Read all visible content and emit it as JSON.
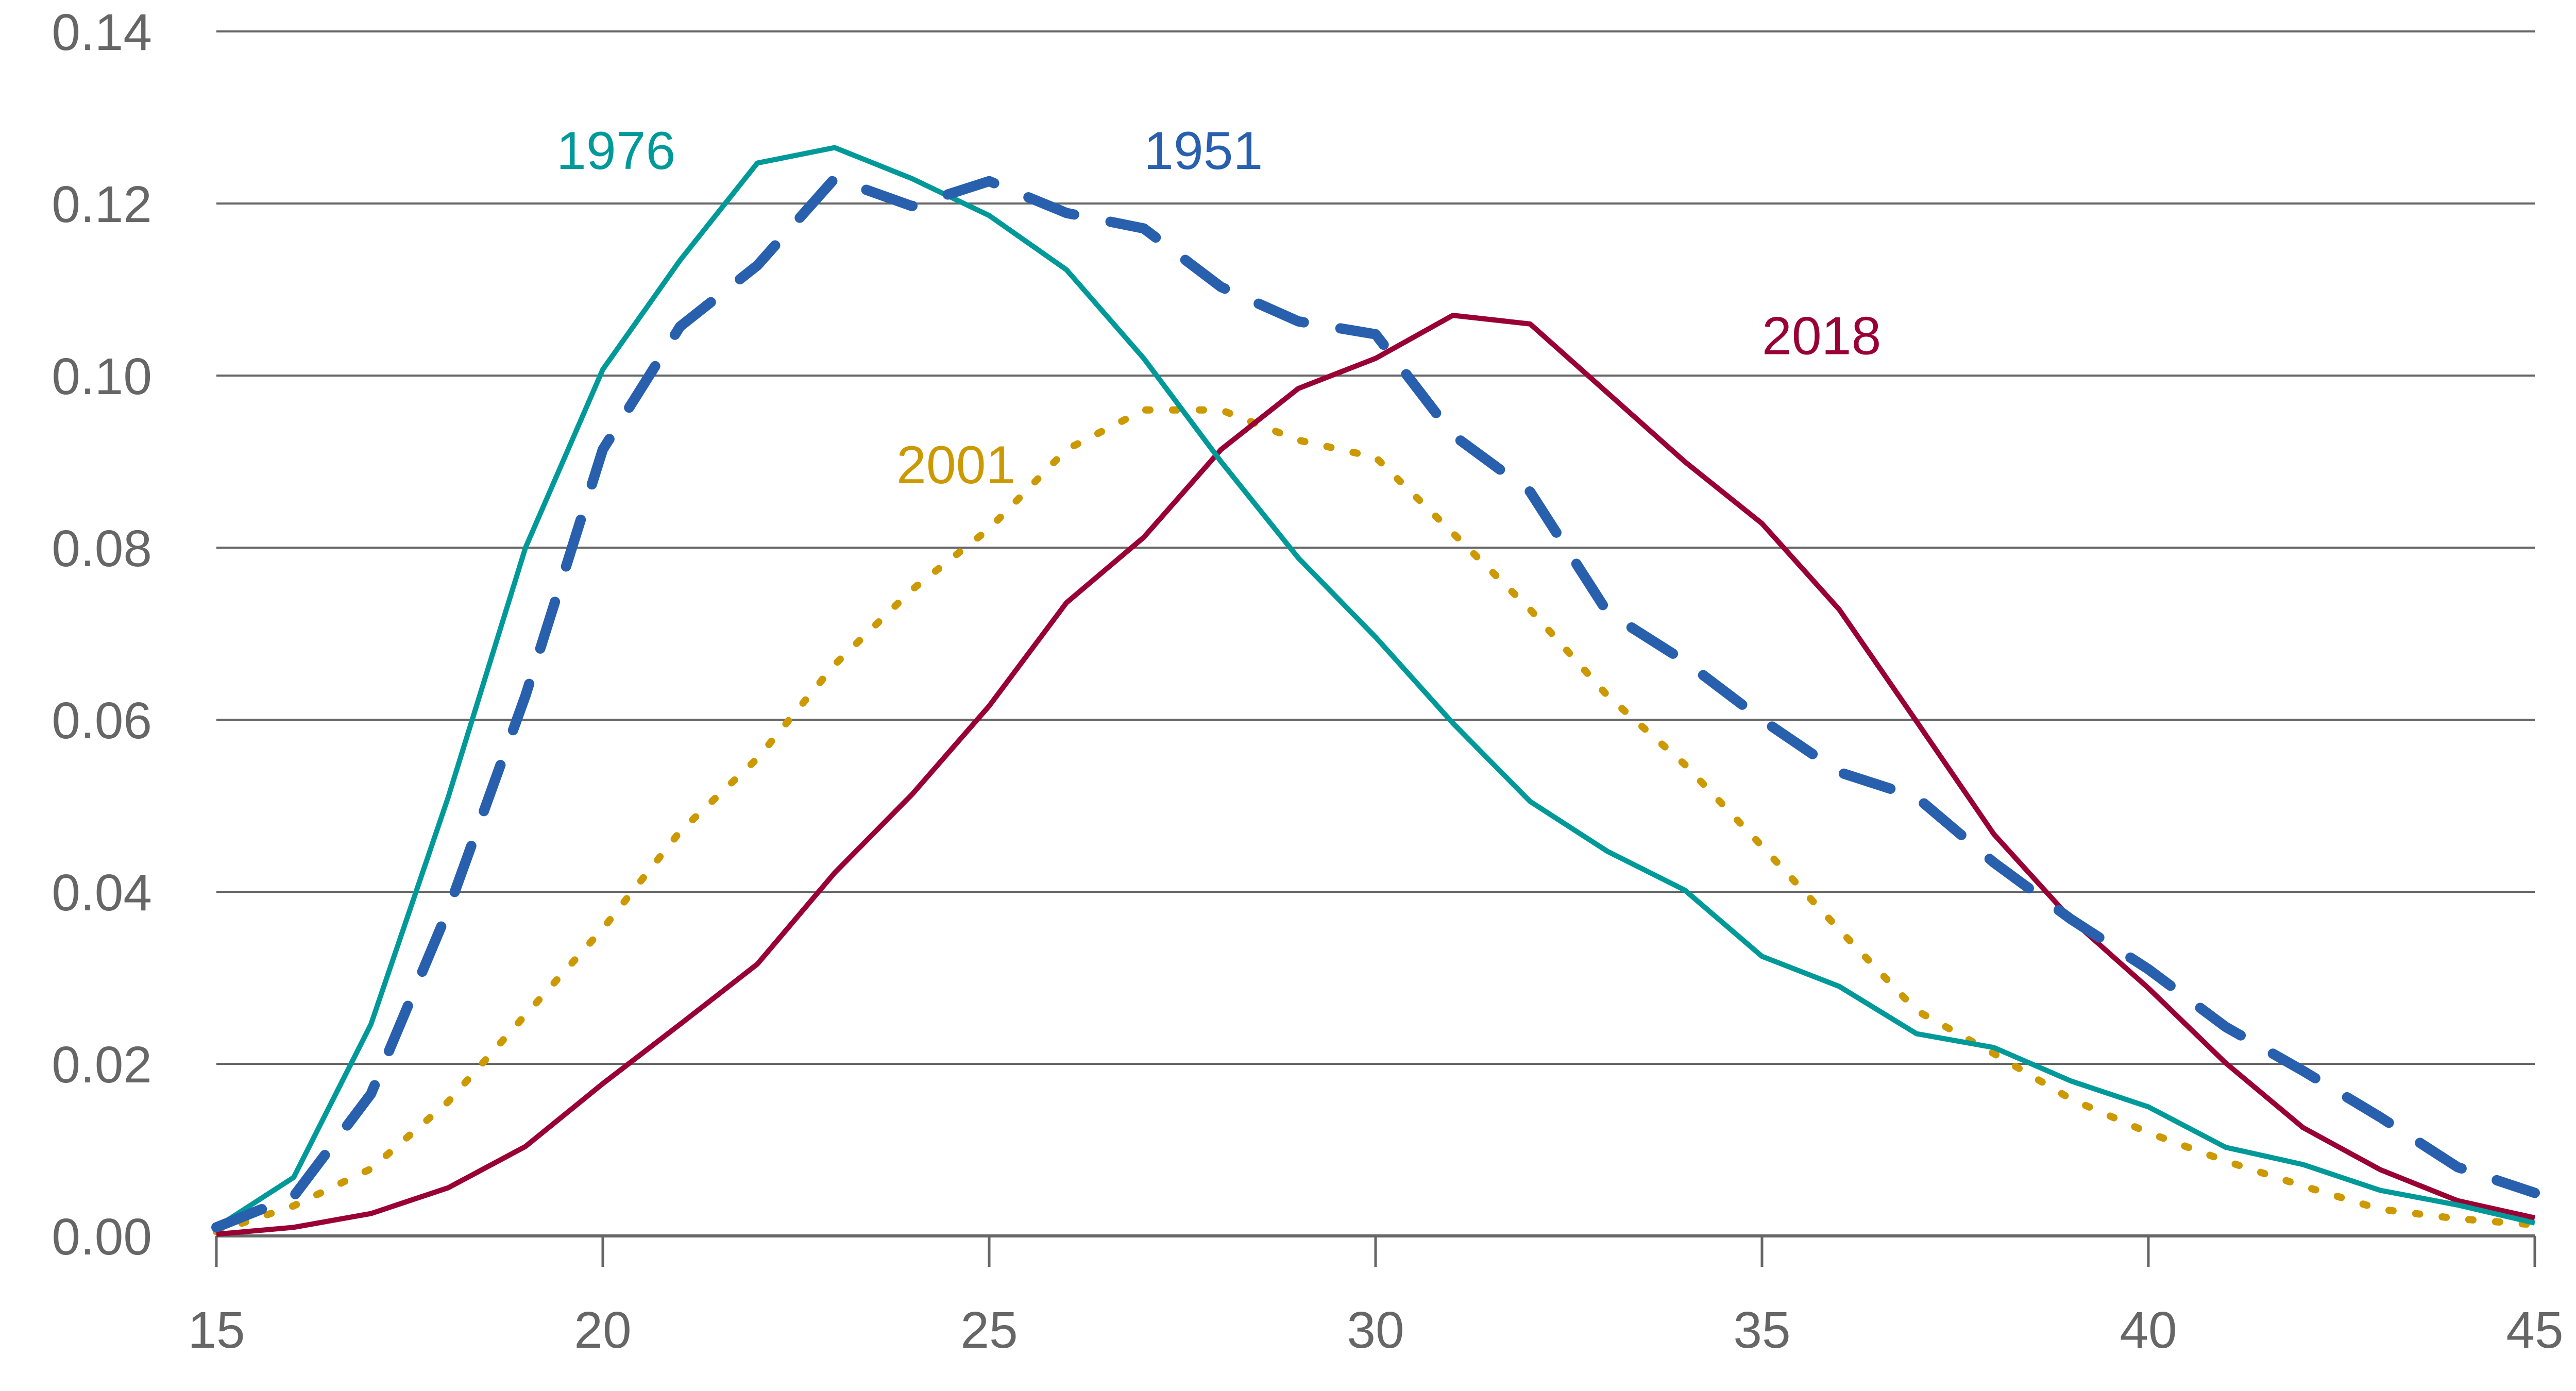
{
  "chart_data": {
    "type": "line",
    "title": "",
    "xlabel": "",
    "ylabel": "",
    "xlim": [
      15,
      45
    ],
    "ylim": [
      0,
      0.14
    ],
    "grid": true,
    "x_ticks": [
      "15",
      "20",
      "25",
      "30",
      "35",
      "40",
      "45"
    ],
    "x_tick_values": [
      15,
      20,
      25,
      30,
      35,
      40,
      45
    ],
    "y_ticks": [
      "0.00",
      "0.02",
      "0.04",
      "0.06",
      "0.08",
      "0.10",
      "0.12",
      "0.14"
    ],
    "y_tick_values": [
      0,
      0.02,
      0.04,
      0.06,
      0.08,
      0.1,
      0.12,
      0.14
    ],
    "x": [
      15,
      16,
      17,
      18,
      19,
      20,
      21,
      22,
      23,
      24,
      25,
      26,
      27,
      28,
      29,
      30,
      31,
      32,
      33,
      34,
      35,
      36,
      37,
      38,
      39,
      40,
      41,
      42,
      43,
      44,
      45
    ],
    "legend": "inline-labels",
    "series": [
      {
        "name": "1951",
        "color": "#2860AE",
        "style": "dashed",
        "label_anchor": [
          27,
          0.124
        ],
        "values": [
          0.001,
          0.0046,
          0.0165,
          0.0379,
          0.0628,
          0.0914,
          0.1057,
          0.1128,
          0.1229,
          0.1197,
          0.1226,
          0.1189,
          0.1171,
          0.1103,
          0.1063,
          0.1048,
          0.0931,
          0.0865,
          0.0725,
          0.0668,
          0.06,
          0.0539,
          0.051,
          0.0434,
          0.0368,
          0.031,
          0.0243,
          0.0192,
          0.0138,
          0.008,
          0.005
        ]
      },
      {
        "name": "1976",
        "color": "#009999",
        "style": "solid",
        "label_anchor": [
          19.4,
          0.124
        ],
        "values": [
          0.001,
          0.0068,
          0.0246,
          0.051,
          0.08,
          0.1007,
          0.1134,
          0.1247,
          0.1265,
          0.1229,
          0.1186,
          0.1123,
          0.102,
          0.09,
          0.0788,
          0.0696,
          0.0596,
          0.0505,
          0.0447,
          0.0402,
          0.0325,
          0.029,
          0.0235,
          0.0219,
          0.018,
          0.015,
          0.0103,
          0.0083,
          0.0053,
          0.0036,
          0.0015
        ]
      },
      {
        "name": "2001",
        "color": "#CC9900",
        "style": "dotted",
        "label_anchor": [
          23.8,
          0.0875
        ],
        "values": [
          0.0005,
          0.0035,
          0.0078,
          0.0156,
          0.0257,
          0.0357,
          0.047,
          0.0555,
          0.0664,
          0.0751,
          0.0822,
          0.0914,
          0.096,
          0.096,
          0.0925,
          0.0905,
          0.0817,
          0.0728,
          0.0628,
          0.0548,
          0.0453,
          0.0356,
          0.0262,
          0.0212,
          0.0159,
          0.012,
          0.0087,
          0.0058,
          0.0031,
          0.002,
          0.0013
        ]
      },
      {
        "name": "2018",
        "color": "#990033",
        "style": "solid",
        "label_anchor": [
          35.0,
          0.1025
        ],
        "values": [
          0.0002,
          0.001,
          0.0026,
          0.0056,
          0.0104,
          0.0177,
          0.0246,
          0.0316,
          0.0422,
          0.0513,
          0.0616,
          0.0736,
          0.0812,
          0.0914,
          0.0985,
          0.102,
          0.107,
          0.106,
          0.098,
          0.09,
          0.0828,
          0.0728,
          0.0598,
          0.0467,
          0.0368,
          0.0288,
          0.0201,
          0.0126,
          0.0077,
          0.0041,
          0.0021
        ]
      }
    ],
    "colors": {
      "gridline": "#666666",
      "axis": "#666666",
      "tick_label": "#666666"
    }
  }
}
